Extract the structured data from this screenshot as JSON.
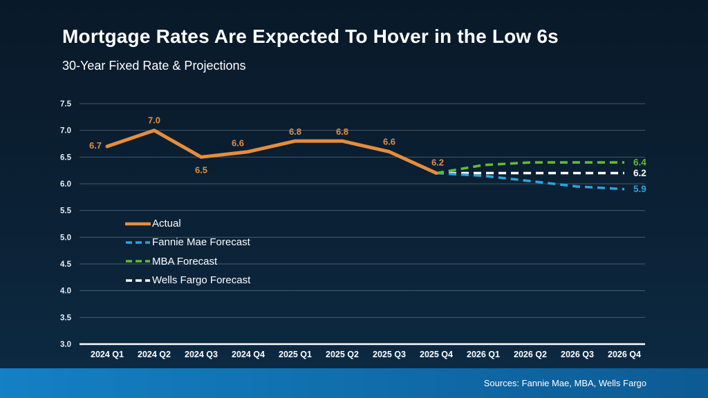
{
  "slide": {
    "title": "Mortgage Rates Are Expected To Hover in the Low 6s",
    "subtitle": "30-Year Fixed Rate & Projections",
    "source": "Sources: Fannie Mae, MBA, Wells Fargo"
  },
  "colors": {
    "background_top": "#091929",
    "background_bottom": "#0d2b44",
    "band_left": "#1480c5",
    "band_right": "#0d5a94",
    "gridline": "rgba(170,185,200,0.38)",
    "axis_line": "#ffffff",
    "tick_label": "#e9eef3",
    "text": "#ffffff"
  },
  "chart_data": {
    "type": "line",
    "title": "Mortgage Rates Are Expected To Hover in the Low 6s",
    "subtitle": "30-Year Fixed Rate & Projections",
    "categories": [
      "2024 Q1",
      "2024 Q2",
      "2024 Q3",
      "2024 Q4",
      "2025 Q1",
      "2025 Q2",
      "2025 Q3",
      "2025 Q4",
      "2026 Q1",
      "2026 Q2",
      "2026 Q3",
      "2026 Q4"
    ],
    "ylim": [
      3.0,
      7.5
    ],
    "ytick_step": 0.5,
    "grid": true,
    "legend_position": "inside-left",
    "series": [
      {
        "name": "Actual",
        "color": "#e68d3d",
        "style": "solid",
        "values": [
          6.7,
          7.0,
          6.5,
          6.6,
          6.8,
          6.8,
          6.6,
          6.2,
          null,
          null,
          null,
          null
        ],
        "point_labels": [
          "6.7",
          "7.0",
          "6.5",
          "6.6",
          "6.8",
          "6.8",
          "6.6",
          "6.2"
        ],
        "label_offsets": [
          [
            -17,
            3
          ],
          [
            0,
            -10
          ],
          [
            0,
            23
          ],
          [
            -15,
            -8
          ],
          [
            0,
            -9
          ],
          [
            0,
            -9
          ],
          [
            0,
            -10
          ],
          [
            2,
            -11
          ]
        ]
      },
      {
        "name": "Fannie Mae Forecast",
        "color": "#2ba4dd",
        "style": "dashed",
        "values": [
          null,
          null,
          null,
          null,
          null,
          null,
          null,
          6.2,
          6.15,
          6.05,
          5.95,
          5.9
        ],
        "end_label": "5.9"
      },
      {
        "name": "MBA Forecast",
        "color": "#63bd2d",
        "style": "dashed",
        "values": [
          null,
          null,
          null,
          null,
          null,
          null,
          null,
          6.2,
          6.35,
          6.4,
          6.4,
          6.4
        ],
        "end_label": "6.4"
      },
      {
        "name": "Wells Fargo Forecast",
        "color": "#ffffff",
        "style": "dashed",
        "values": [
          null,
          null,
          null,
          null,
          null,
          null,
          null,
          6.2,
          6.2,
          6.2,
          6.2,
          6.2
        ],
        "end_label": "6.2"
      }
    ]
  }
}
